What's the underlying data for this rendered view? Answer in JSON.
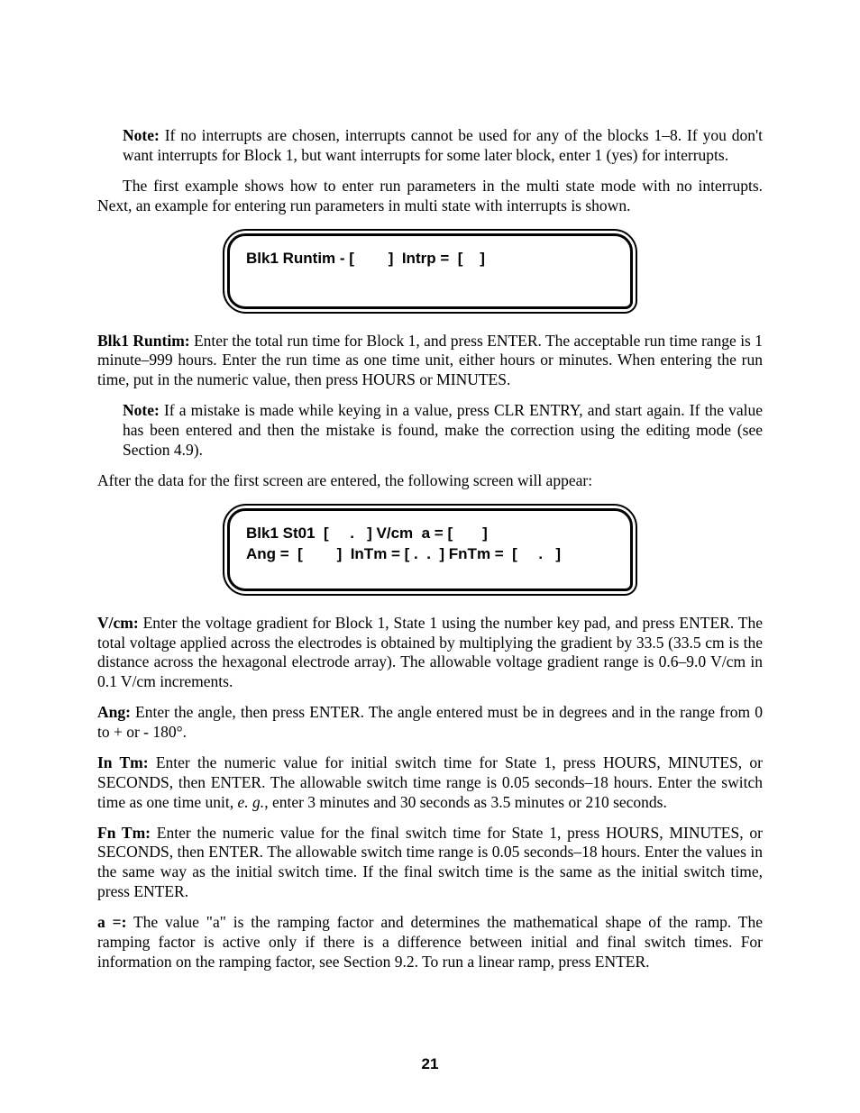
{
  "note1": {
    "label": "Note:",
    "text": " If no interrupts are chosen, interrupts cannot be used for any of the blocks 1–8. If you don't want interrupts for Block 1, but want interrupts for some later block, enter 1 (yes) for interrupts."
  },
  "para_intro": "The first example shows how to enter run parameters in the multi state mode with no interrupts. Next, an example for entering run parameters in multi state with interrupts is shown.",
  "lcd1": "Blk1 Runtim - [        ]  Intrp =  [    ]",
  "runtim": {
    "label": "Blk1 Runtim:",
    "text": " Enter the total run time for Block 1, and press ENTER. The acceptable run time range is 1 minute–999 hours. Enter the run time as one time unit, either hours or minutes. When entering the run time, put in the numeric value, then press HOURS or MINUTES."
  },
  "note2": {
    "label": "Note:",
    "text": " If a mistake is made while keying in a value, press CLR ENTRY, and start again. If the value has been entered and then the mistake is found, make the correction using the editing mode (see Section 4.9)."
  },
  "para_after": "After the data for the first screen are entered, the following screen will appear:",
  "lcd2_line1": "Blk1 St01  [     .   ] V/cm  a = [       ]",
  "lcd2_line2": "Ang =  [        ]  InTm = [ .  .  ] FnTm =  [     .   ]",
  "vcm": {
    "label": "V/cm:",
    "text": " Enter the voltage gradient for Block 1, State 1 using the number key pad, and press ENTER. The total voltage applied across the electrodes is obtained by multiplying the gradient by 33.5 (33.5 cm is the distance across the hexagonal electrode array). The allowable voltage gradient range is 0.6–9.0 V/cm in 0.1 V/cm increments."
  },
  "ang": {
    "label": "Ang:",
    "text": " Enter the angle, then press ENTER. The angle entered must be in degrees and in the range from 0 to + or - 180°."
  },
  "intm": {
    "label": "In Tm:",
    "text_a": " Enter the numeric value for initial switch time for State 1, press HOURS, MINUTES, or SECONDS, then ENTER. The allowable switch time range is 0.05 seconds–18 hours. Enter the switch time as one time unit, ",
    "eg": "e. g.",
    "text_b": ", enter 3 minutes and 30 seconds as 3.5 minutes or 210 seconds."
  },
  "fntm": {
    "label": "Fn Tm:",
    "text": " Enter the numeric value for the final switch time for State 1, press HOURS, MINUTES, or SECONDS, then ENTER. The allowable switch time range is 0.05 seconds–18 hours. Enter the values in the same way as the initial switch time. If the final switch time is the same as the initial switch time, press ENTER."
  },
  "aeq": {
    "label": "a =:",
    "text": " The value \"a\" is the ramping factor and determines the mathematical shape of the ramp. The ramping factor is active only if there is a difference between initial and final switch times. For information on the ramping factor, see Section 9.2. To run a linear ramp, press ENTER."
  },
  "page_number": "21"
}
